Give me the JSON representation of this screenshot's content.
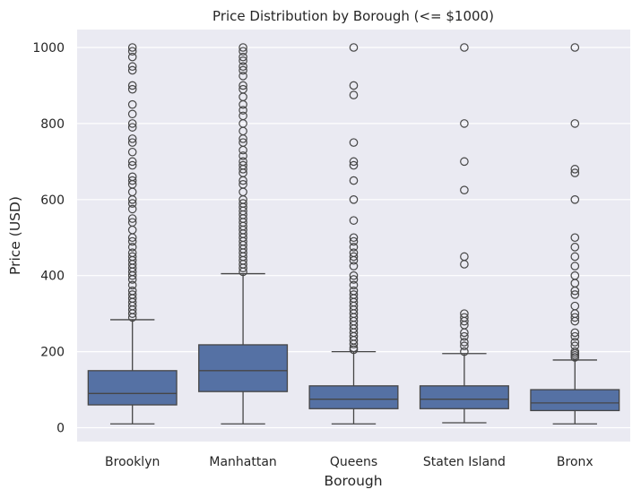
{
  "chart_data": {
    "type": "box",
    "title": "Price Distribution by Borough (<= $1000)",
    "xlabel": "Borough",
    "ylabel": "Price (USD)",
    "ylim": [
      -40,
      1040
    ],
    "yticks": [
      0,
      200,
      400,
      600,
      800,
      1000
    ],
    "grid": true,
    "legend": null,
    "categories": [
      "Brooklyn",
      "Manhattan",
      "Queens",
      "Staten Island",
      "Bronx"
    ],
    "box_color": "#5571a4",
    "line_color": "#464646",
    "background_color": "#eaeaf2",
    "series": [
      {
        "name": "Brooklyn",
        "whisker_low": 10,
        "q1": 60,
        "median": 90,
        "q3": 150,
        "whisker_high": 284,
        "outliers": [
          290,
          300,
          310,
          320,
          330,
          340,
          350,
          360,
          375,
          390,
          400,
          410,
          420,
          430,
          440,
          450,
          460,
          475,
          490,
          500,
          520,
          540,
          550,
          575,
          590,
          600,
          620,
          640,
          650,
          660,
          690,
          700,
          725,
          750,
          760,
          790,
          800,
          825,
          850,
          890,
          900,
          940,
          950,
          975,
          990,
          1000
        ]
      },
      {
        "name": "Manhattan",
        "whisker_low": 10,
        "q1": 95,
        "median": 150,
        "q3": 218,
        "whisker_high": 405,
        "outliers": [
          410,
          420,
          430,
          440,
          450,
          460,
          470,
          480,
          490,
          500,
          510,
          520,
          530,
          540,
          550,
          560,
          570,
          580,
          590,
          600,
          620,
          640,
          650,
          670,
          680,
          690,
          700,
          715,
          730,
          750,
          760,
          780,
          800,
          820,
          835,
          850,
          870,
          890,
          900,
          925,
          940,
          950,
          965,
          975,
          990,
          1000
        ]
      },
      {
        "name": "Queens",
        "whisker_low": 10,
        "q1": 50,
        "median": 75,
        "q3": 110,
        "whisker_high": 200,
        "outliers": [
          205,
          210,
          220,
          230,
          240,
          250,
          260,
          270,
          280,
          290,
          300,
          310,
          320,
          330,
          340,
          350,
          360,
          375,
          390,
          400,
          425,
          440,
          450,
          460,
          475,
          490,
          500,
          545,
          600,
          650,
          690,
          700,
          750,
          875,
          900,
          1000
        ]
      },
      {
        "name": "Staten Island",
        "whisker_low": 13,
        "q1": 50,
        "median": 75,
        "q3": 110,
        "whisker_high": 195,
        "outliers": [
          200,
          215,
          225,
          240,
          250,
          270,
          280,
          290,
          300,
          430,
          450,
          625,
          700,
          800,
          1000
        ]
      },
      {
        "name": "Bronx",
        "whisker_low": 10,
        "q1": 45,
        "median": 65,
        "q3": 100,
        "whisker_high": 178,
        "outliers": [
          185,
          190,
          195,
          200,
          215,
          225,
          240,
          250,
          280,
          290,
          300,
          320,
          350,
          360,
          380,
          400,
          425,
          450,
          475,
          500,
          600,
          670,
          680,
          800,
          1000
        ]
      }
    ]
  }
}
